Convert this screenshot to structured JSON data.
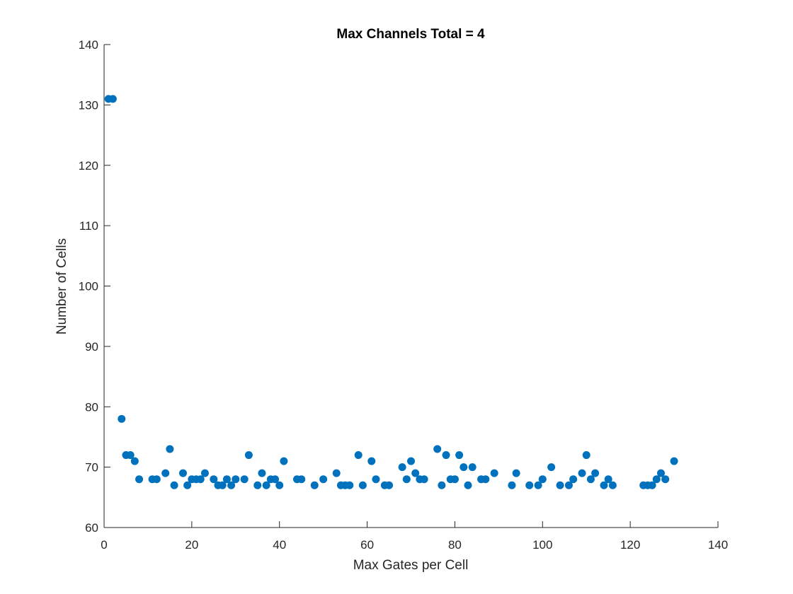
{
  "chart_data": {
    "type": "scatter",
    "title": "Max Channels Total = 4",
    "xlabel": "Max Gates per Cell",
    "ylabel": "Number of Cells",
    "xlim": [
      0,
      140
    ],
    "ylim": [
      60,
      140
    ],
    "xticks": [
      0,
      20,
      40,
      60,
      80,
      100,
      120,
      140
    ],
    "yticks": [
      60,
      70,
      80,
      90,
      100,
      110,
      120,
      130,
      140
    ],
    "grid": false,
    "marker_color": "#0072BD",
    "series": [
      {
        "points": [
          [
            1,
            131
          ],
          [
            2,
            131
          ],
          [
            4,
            78
          ],
          [
            5,
            72
          ],
          [
            6,
            72
          ],
          [
            7,
            71
          ],
          [
            8,
            68
          ],
          [
            11,
            68
          ],
          [
            12,
            68
          ],
          [
            14,
            69
          ],
          [
            15,
            73
          ],
          [
            16,
            67
          ],
          [
            18,
            69
          ],
          [
            19,
            67
          ],
          [
            20,
            68
          ],
          [
            21,
            68
          ],
          [
            22,
            68
          ],
          [
            23,
            69
          ],
          [
            25,
            68
          ],
          [
            26,
            67
          ],
          [
            27,
            67
          ],
          [
            28,
            68
          ],
          [
            29,
            67
          ],
          [
            30,
            68
          ],
          [
            32,
            68
          ],
          [
            33,
            72
          ],
          [
            35,
            67
          ],
          [
            36,
            69
          ],
          [
            37,
            67
          ],
          [
            38,
            68
          ],
          [
            39,
            68
          ],
          [
            40,
            67
          ],
          [
            41,
            71
          ],
          [
            44,
            68
          ],
          [
            45,
            68
          ],
          [
            48,
            67
          ],
          [
            50,
            68
          ],
          [
            53,
            69
          ],
          [
            54,
            67
          ],
          [
            55,
            67
          ],
          [
            56,
            67
          ],
          [
            58,
            72
          ],
          [
            59,
            67
          ],
          [
            61,
            71
          ],
          [
            62,
            68
          ],
          [
            64,
            67
          ],
          [
            65,
            67
          ],
          [
            68,
            70
          ],
          [
            69,
            68
          ],
          [
            70,
            71
          ],
          [
            71,
            69
          ],
          [
            72,
            68
          ],
          [
            73,
            68
          ],
          [
            76,
            73
          ],
          [
            77,
            67
          ],
          [
            78,
            72
          ],
          [
            79,
            68
          ],
          [
            80,
            68
          ],
          [
            81,
            72
          ],
          [
            82,
            70
          ],
          [
            83,
            67
          ],
          [
            84,
            70
          ],
          [
            86,
            68
          ],
          [
            87,
            68
          ],
          [
            89,
            69
          ],
          [
            93,
            67
          ],
          [
            94,
            69
          ],
          [
            97,
            67
          ],
          [
            99,
            67
          ],
          [
            100,
            68
          ],
          [
            102,
            70
          ],
          [
            104,
            67
          ],
          [
            106,
            67
          ],
          [
            107,
            68
          ],
          [
            109,
            69
          ],
          [
            110,
            72
          ],
          [
            111,
            68
          ],
          [
            112,
            69
          ],
          [
            114,
            67
          ],
          [
            115,
            68
          ],
          [
            116,
            67
          ],
          [
            123,
            67
          ],
          [
            124,
            67
          ],
          [
            125,
            67
          ],
          [
            126,
            68
          ],
          [
            127,
            69
          ],
          [
            128,
            68
          ],
          [
            130,
            71
          ]
        ]
      }
    ]
  }
}
